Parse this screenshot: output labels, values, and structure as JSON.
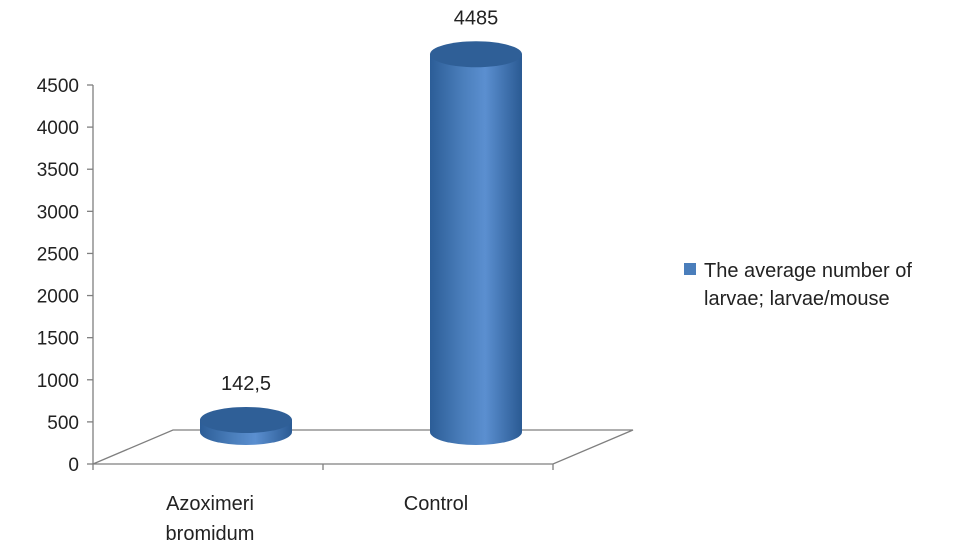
{
  "chart_data": {
    "type": "bar",
    "categories": [
      "Azoximeri bromidum",
      "Control"
    ],
    "category_lines": [
      [
        "Azoximeri",
        "bromidum"
      ],
      [
        "Control"
      ]
    ],
    "series": [
      {
        "name": "The average number of larvae; larvae/mouse",
        "values": [
          142.5,
          4485
        ]
      }
    ],
    "data_labels": [
      "142,5",
      "4485"
    ],
    "ylim": [
      0,
      4500
    ],
    "yticks": [
      0,
      500,
      1000,
      1500,
      2000,
      2500,
      3000,
      3500,
      4000,
      4500
    ],
    "legend_position": "right",
    "grid": false,
    "colors": {
      "bar": "#4a7ebb",
      "bar_top": "#2f5f97",
      "axis": "#7f7f7f"
    }
  }
}
